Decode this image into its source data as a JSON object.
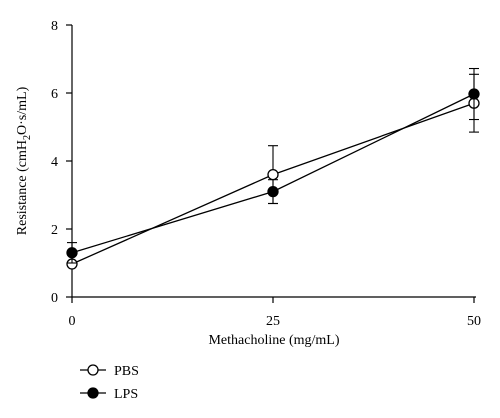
{
  "chart_data": {
    "type": "line",
    "title": "",
    "xlabel": "Methacholine (mg/mL)",
    "ylabel_parts": {
      "before": "Resistance (cmH",
      "sub": "2",
      "after": "O·s/mL)"
    },
    "x": [
      0,
      25,
      50
    ],
    "xlim": [
      0,
      50
    ],
    "ylim": [
      0,
      8
    ],
    "x_ticks": [
      "0",
      "25",
      "50"
    ],
    "y_ticks": [
      "0",
      "2",
      "4",
      "6",
      "8"
    ],
    "x_tick_values": [
      0,
      25,
      50
    ],
    "y_tick_values": [
      0,
      2,
      4,
      6,
      8
    ],
    "grid": false,
    "legend_position": "bottom-left",
    "series": [
      {
        "name": "PBS",
        "marker": "open-circle",
        "values": [
          0.97,
          3.6,
          5.7
        ],
        "error": [
          0.0,
          0.85,
          0.85
        ]
      },
      {
        "name": "LPS",
        "marker": "filled-circle",
        "values": [
          1.3,
          3.1,
          5.97
        ],
        "error": [
          0.3,
          0.35,
          0.75
        ]
      }
    ]
  }
}
